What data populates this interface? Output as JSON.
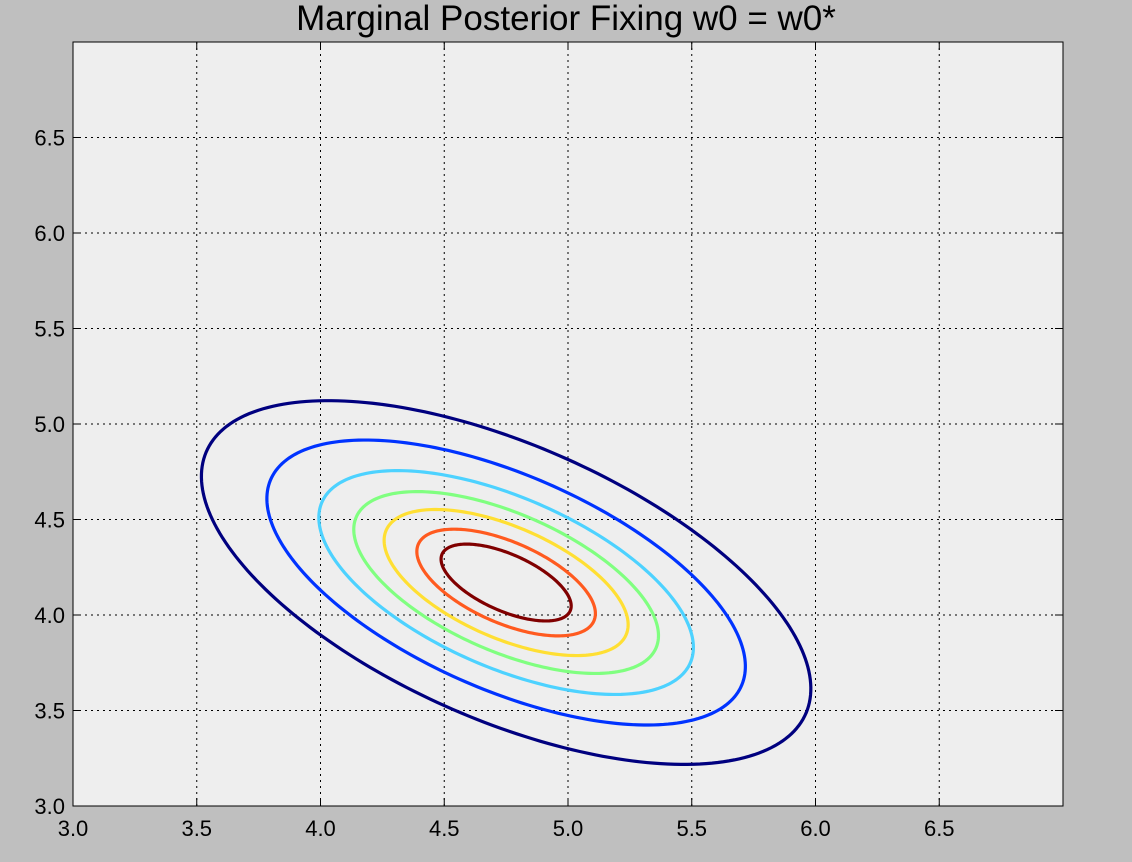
{
  "chart_data": {
    "type": "contour",
    "title": "Marginal Posterior Fixing w0 = w0*",
    "xlabel": "",
    "ylabel": "",
    "xlim": [
      3.0,
      7.0
    ],
    "ylim": [
      3.0,
      7.0
    ],
    "x_ticks": [
      "3.0",
      "3.5",
      "4.0",
      "4.5",
      "5.0",
      "5.5",
      "6.0",
      "6.5"
    ],
    "y_ticks": [
      "3.0",
      "3.5",
      "4.0",
      "4.5",
      "5.0",
      "5.5",
      "6.0",
      "6.5"
    ],
    "grid": true,
    "grid_style": "dotted",
    "plot_background": "#eeeeee",
    "figure_background": "#bfbfbf",
    "center": [
      4.75,
      4.17
    ],
    "contours": [
      {
        "color": "#00007f",
        "semi_major": 1.4,
        "semi_minor": 0.68,
        "angle_deg": -33
      },
      {
        "color": "#0033ff",
        "semi_major": 1.1,
        "semi_minor": 0.53,
        "angle_deg": -33
      },
      {
        "color": "#4dd2ff",
        "semi_major": 0.86,
        "semi_minor": 0.42,
        "angle_deg": -33
      },
      {
        "color": "#80ff80",
        "semi_major": 0.7,
        "semi_minor": 0.34,
        "angle_deg": -33
      },
      {
        "color": "#ffdf33",
        "semi_major": 0.56,
        "semi_minor": 0.275,
        "angle_deg": -33
      },
      {
        "color": "#ff5a1f",
        "semi_major": 0.41,
        "semi_minor": 0.2,
        "angle_deg": -33
      },
      {
        "color": "#800000",
        "semi_major": 0.3,
        "semi_minor": 0.14,
        "angle_deg": -33
      }
    ]
  }
}
